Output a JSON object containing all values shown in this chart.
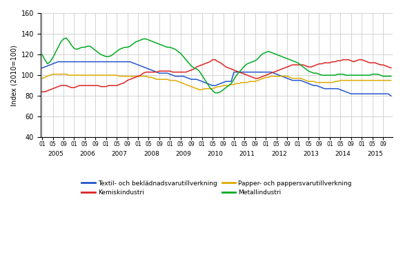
{
  "title": "",
  "ylabel": "Index (2010=100)",
  "ylim": [
    40,
    160
  ],
  "yticks": [
    40,
    60,
    80,
    100,
    120,
    140,
    160
  ],
  "years": [
    2005,
    2006,
    2007,
    2008,
    2009,
    2010,
    2011,
    2012,
    2013,
    2014,
    2015
  ],
  "legend": [
    {
      "label": "Textil- och beklädnadsvarutillverkning",
      "color": "#2255cc"
    },
    {
      "label": "Papper- och pappersvarutillverkning",
      "color": "#ddaa00"
    },
    {
      "label": "Kemiskindustri",
      "color": "#dd2222"
    },
    {
      "label": "Metallindustri",
      "color": "#00aa22"
    }
  ],
  "series": {
    "textil": [
      107,
      108,
      109,
      110,
      111,
      112,
      113,
      113,
      113,
      113,
      113,
      113,
      113,
      113,
      113,
      113,
      113,
      113,
      113,
      113,
      113,
      113,
      113,
      113,
      113,
      113,
      113,
      113,
      113,
      113,
      113,
      113,
      113,
      113,
      112,
      111,
      110,
      109,
      108,
      107,
      106,
      105,
      104,
      103,
      102,
      102,
      102,
      102,
      101,
      100,
      99,
      99,
      99,
      99,
      98,
      97,
      96,
      96,
      96,
      95,
      94,
      93,
      92,
      91,
      90,
      90,
      91,
      92,
      93,
      94,
      94,
      94,
      103,
      103,
      103,
      103,
      103,
      103,
      103,
      103,
      103,
      103,
      103,
      103,
      103,
      103,
      103,
      102,
      101,
      100,
      99,
      98,
      97,
      96,
      95,
      95,
      95,
      95,
      94,
      93,
      92,
      91,
      90,
      90,
      89,
      88,
      87,
      87,
      87,
      87,
      87,
      87,
      86,
      85,
      84,
      83,
      82,
      82,
      82,
      82,
      82,
      82,
      82,
      82,
      82,
      82,
      82,
      82,
      82,
      82,
      82,
      80,
      79
    ],
    "papper": [
      97,
      98,
      99,
      100,
      101,
      101,
      101,
      101,
      101,
      101,
      100,
      100,
      100,
      100,
      100,
      100,
      100,
      100,
      100,
      100,
      100,
      100,
      100,
      100,
      100,
      100,
      100,
      100,
      100,
      99,
      99,
      99,
      99,
      99,
      99,
      99,
      99,
      99,
      99,
      99,
      98,
      98,
      97,
      96,
      96,
      96,
      96,
      96,
      95,
      95,
      95,
      94,
      93,
      92,
      91,
      90,
      89,
      88,
      87,
      86,
      86,
      87,
      87,
      87,
      87,
      88,
      89,
      89,
      90,
      90,
      90,
      91,
      91,
      92,
      92,
      93,
      93,
      93,
      94,
      94,
      94,
      95,
      96,
      97,
      98,
      98,
      99,
      99,
      99,
      99,
      99,
      99,
      99,
      98,
      97,
      97,
      97,
      97,
      96,
      95,
      94,
      94,
      94,
      93,
      93,
      93,
      93,
      93,
      93,
      93,
      94,
      94,
      95,
      95,
      95,
      95,
      95,
      95,
      95,
      95,
      95,
      95,
      95,
      95,
      95,
      95,
      95,
      95,
      95,
      95,
      95,
      95,
      95
    ],
    "kemisk": [
      84,
      84,
      85,
      86,
      87,
      88,
      89,
      90,
      90,
      90,
      89,
      88,
      88,
      89,
      90,
      90,
      90,
      90,
      90,
      90,
      90,
      90,
      89,
      89,
      89,
      90,
      90,
      90,
      90,
      91,
      92,
      93,
      95,
      96,
      97,
      98,
      99,
      100,
      102,
      103,
      103,
      103,
      103,
      103,
      104,
      104,
      104,
      104,
      104,
      103,
      103,
      103,
      103,
      103,
      103,
      104,
      105,
      106,
      108,
      109,
      110,
      111,
      112,
      113,
      115,
      115,
      113,
      112,
      110,
      108,
      107,
      106,
      105,
      104,
      103,
      102,
      101,
      100,
      99,
      98,
      97,
      97,
      98,
      99,
      100,
      101,
      102,
      103,
      104,
      105,
      106,
      107,
      108,
      109,
      110,
      110,
      110,
      110,
      110,
      109,
      108,
      108,
      109,
      110,
      111,
      111,
      112,
      112,
      112,
      113,
      113,
      114,
      114,
      115,
      115,
      115,
      114,
      113,
      114,
      115,
      115,
      114,
      113,
      112,
      112,
      112,
      111,
      110,
      110,
      109,
      108,
      107,
      106
    ],
    "metall": [
      120,
      115,
      111,
      113,
      117,
      122,
      127,
      132,
      135,
      136,
      133,
      129,
      126,
      125,
      126,
      127,
      127,
      128,
      128,
      126,
      124,
      122,
      120,
      119,
      118,
      118,
      119,
      121,
      123,
      125,
      126,
      127,
      127,
      128,
      130,
      132,
      133,
      134,
      135,
      135,
      134,
      133,
      132,
      131,
      130,
      129,
      128,
      127,
      127,
      126,
      125,
      123,
      121,
      118,
      115,
      112,
      109,
      107,
      106,
      104,
      100,
      96,
      92,
      88,
      85,
      83,
      83,
      84,
      86,
      88,
      90,
      92,
      96,
      100,
      103,
      106,
      109,
      111,
      112,
      113,
      114,
      116,
      119,
      121,
      122,
      123,
      122,
      121,
      120,
      119,
      118,
      117,
      116,
      115,
      114,
      113,
      112,
      110,
      108,
      106,
      104,
      103,
      102,
      102,
      101,
      100,
      100,
      100,
      100,
      100,
      100,
      101,
      101,
      101,
      100,
      100,
      100,
      100,
      100,
      100,
      100,
      100,
      100,
      100,
      101,
      101,
      101,
      100,
      99,
      99,
      99,
      99,
      99
    ]
  }
}
